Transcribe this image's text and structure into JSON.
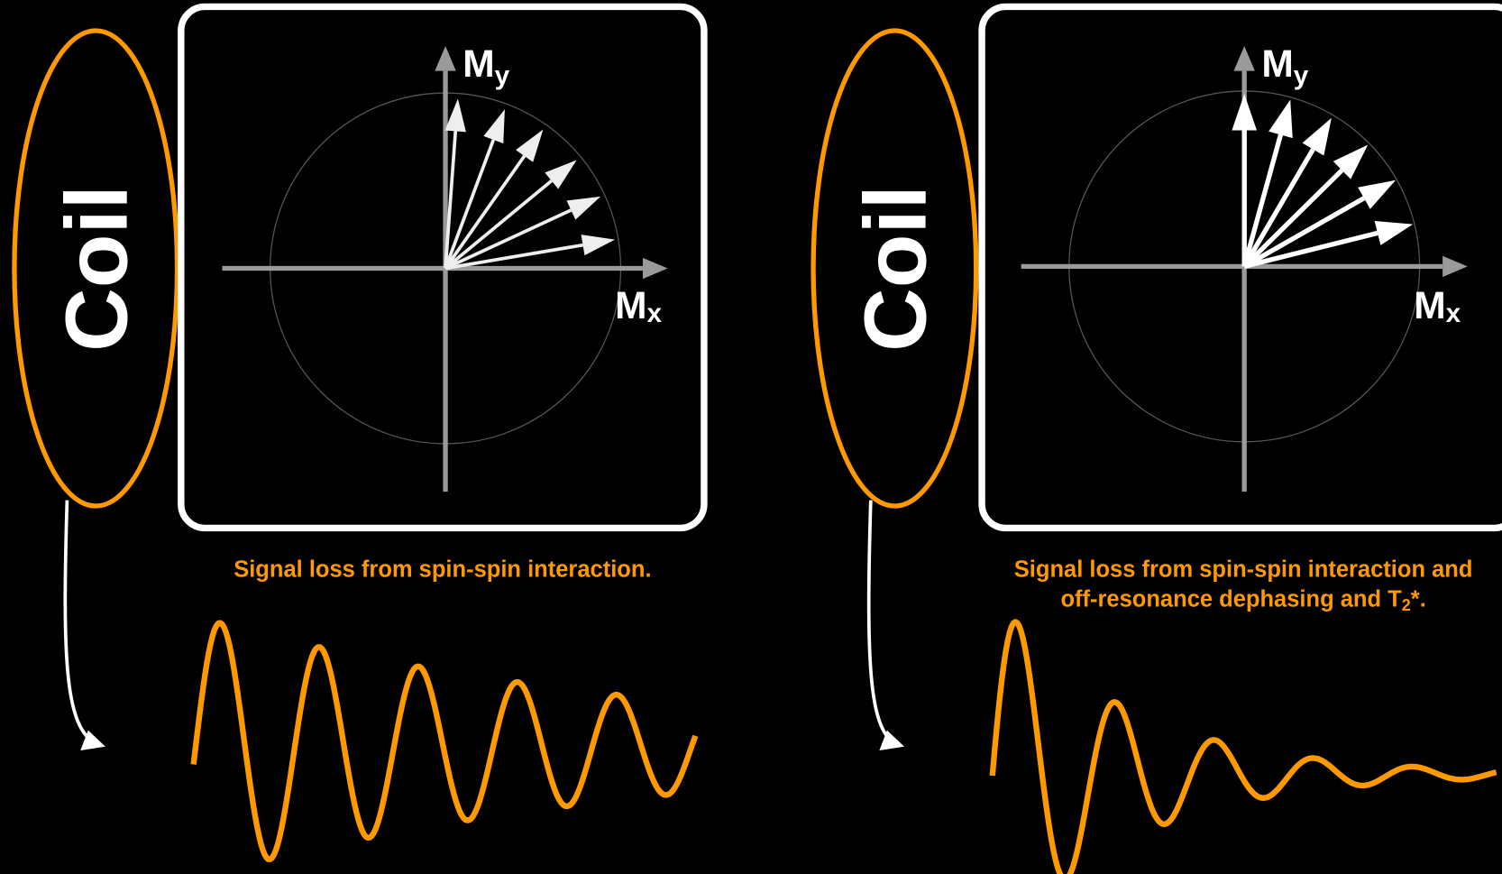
{
  "panels": [
    {
      "coil": "Coil",
      "y_axis": {
        "main": "M",
        "sub": "y"
      },
      "x_axis": {
        "main": "M",
        "sub": "x"
      },
      "caption": [
        "Signal loss from spin-spin interaction."
      ]
    },
    {
      "coil": "Coil",
      "y_axis": {
        "main": "M",
        "sub": "y"
      },
      "x_axis": {
        "main": "M",
        "sub": "x"
      },
      "caption": [
        "Signal loss from spin-spin interaction and",
        "off-resonance dephasing and T",
        "2",
        "*."
      ]
    }
  ]
}
